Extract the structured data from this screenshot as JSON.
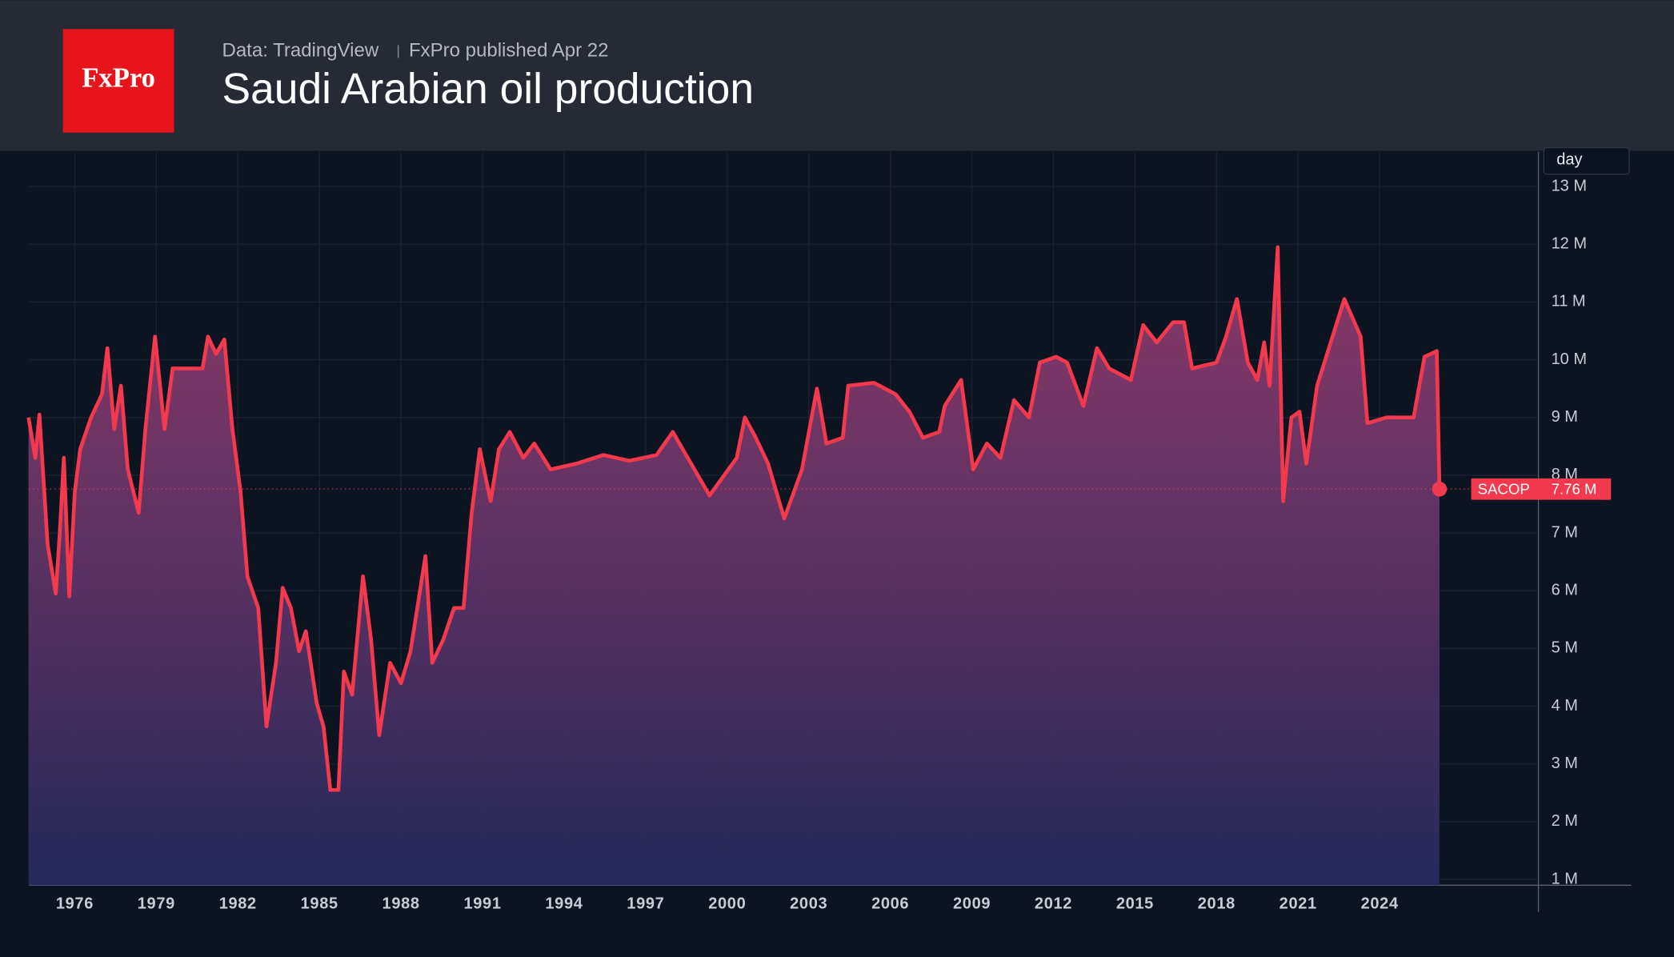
{
  "header": {
    "logo": "FxPro",
    "source": "Data: TradingView",
    "published": "FxPro published Apr 22"
  },
  "chart_data": {
    "type": "area",
    "title": "Saudi Arabian oil production",
    "y_axis_label": "day",
    "xlim": [
      1974.31,
      2029.8
    ],
    "ylim": [
      0.9,
      13.6
    ],
    "xticks": [
      1976,
      1979,
      1982,
      1985,
      1988,
      1991,
      1994,
      1997,
      2000,
      2003,
      2006,
      2009,
      2012,
      2015,
      2018,
      2021,
      2024
    ],
    "yticks": [
      {
        "value": 1,
        "label": "1 M"
      },
      {
        "value": 2,
        "label": "2 M"
      },
      {
        "value": 3,
        "label": "3 M"
      },
      {
        "value": 4,
        "label": "4 M"
      },
      {
        "value": 5,
        "label": "5 M"
      },
      {
        "value": 6,
        "label": "6 M"
      },
      {
        "value": 7,
        "label": "7 M"
      },
      {
        "value": 8,
        "label": "8 M"
      },
      {
        "value": 9,
        "label": "9 M"
      },
      {
        "value": 10,
        "label": "10 M"
      },
      {
        "value": 11,
        "label": "11 M"
      },
      {
        "value": 12,
        "label": "12 M"
      },
      {
        "value": 13,
        "label": "13 M"
      }
    ],
    "grid": true,
    "x": [
      1974.3,
      1974.55,
      1974.7,
      1975.0,
      1975.3,
      1975.45,
      1975.6,
      1975.8,
      1976.0,
      1976.2,
      1976.6,
      1977.0,
      1977.2,
      1977.45,
      1977.7,
      1977.95,
      1978.35,
      1978.6,
      1978.95,
      1979.3,
      1979.6,
      1980.7,
      1980.9,
      1981.2,
      1981.5,
      1981.8,
      1982.1,
      1982.35,
      1982.75,
      1983.05,
      1983.4,
      1983.65,
      1983.95,
      1984.25,
      1984.5,
      1984.9,
      1985.15,
      1985.4,
      1985.7,
      1985.9,
      1986.2,
      1986.6,
      1986.9,
      1987.2,
      1987.6,
      1988.0,
      1988.35,
      1988.9,
      1989.15,
      1989.55,
      1989.95,
      1990.3,
      1990.6,
      1990.9,
      1991.3,
      1991.6,
      1992.0,
      1992.5,
      1992.9,
      1993.5,
      1994.45,
      1995.45,
      1996.4,
      1997.4,
      1998.0,
      1998.55,
      1999.35,
      2000.35,
      2000.65,
      2001.05,
      2001.5,
      2002.1,
      2002.75,
      2003.3,
      2003.65,
      2004.25,
      2004.45,
      2005.4,
      2006.2,
      2006.7,
      2007.2,
      2007.8,
      2008.0,
      2008.6,
      2009.05,
      2009.55,
      2010.05,
      2010.55,
      2011.1,
      2011.5,
      2012.1,
      2012.5,
      2013.1,
      2013.6,
      2014.05,
      2014.85,
      2015.3,
      2015.8,
      2016.4,
      2016.8,
      2017.1,
      2018.0,
      2018.35,
      2018.75,
      2019.15,
      2019.5,
      2019.75,
      2019.95,
      2020.25,
      2020.45,
      2020.75,
      2021.05,
      2021.3,
      2021.7,
      2022.7,
      2023.3,
      2023.55,
      2024.25,
      2025.25,
      2025.65,
      2026.1,
      2026.2
    ],
    "series": [
      {
        "name": "SACOP",
        "color": "#f2394e",
        "end_label": "7.76 M",
        "values": [
          9.0,
          8.3,
          9.05,
          6.8,
          5.95,
          7.0,
          8.3,
          5.9,
          7.7,
          8.45,
          9.0,
          9.4,
          10.2,
          8.8,
          9.55,
          8.1,
          7.35,
          8.8,
          10.4,
          8.8,
          9.85,
          9.85,
          10.4,
          10.1,
          10.35,
          8.8,
          7.7,
          6.25,
          5.7,
          3.65,
          4.75,
          6.05,
          5.7,
          4.95,
          5.3,
          4.05,
          3.65,
          2.55,
          2.55,
          4.6,
          4.2,
          6.25,
          5.15,
          3.5,
          4.75,
          4.4,
          4.95,
          6.6,
          4.75,
          5.15,
          5.7,
          5.7,
          7.35,
          8.45,
          7.55,
          8.45,
          8.75,
          8.3,
          8.55,
          8.1,
          8.2,
          8.35,
          8.25,
          8.35,
          8.75,
          8.3,
          7.65,
          8.3,
          9.0,
          8.65,
          8.2,
          7.25,
          8.1,
          9.5,
          8.55,
          8.65,
          9.55,
          9.6,
          9.4,
          9.1,
          8.65,
          8.75,
          9.2,
          9.65,
          8.1,
          8.55,
          8.3,
          9.3,
          9.0,
          9.95,
          10.05,
          9.95,
          9.2,
          10.2,
          9.85,
          9.65,
          10.6,
          10.3,
          10.65,
          10.65,
          9.85,
          9.95,
          10.4,
          11.05,
          9.95,
          9.65,
          10.3,
          9.55,
          11.95,
          7.55,
          9.0,
          9.1,
          8.2,
          9.55,
          11.05,
          10.4,
          8.9,
          9.0,
          9.0,
          10.05,
          10.15,
          7.76
        ]
      }
    ]
  }
}
